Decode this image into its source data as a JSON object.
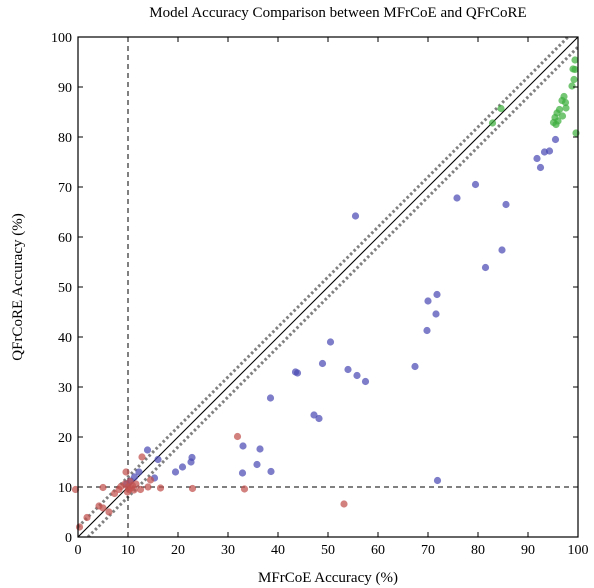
{
  "chart_data": {
    "type": "scatter",
    "title": "Model Accuracy Comparison between MFrCoE and QFrCoRE",
    "xlabel": "MFrCoE Accuracy (%)",
    "ylabel": "QFrCoRE Accuracy (%)",
    "xlim": [
      0,
      100
    ],
    "ylim": [
      0,
      100
    ],
    "x_ticks": [
      "0",
      "10",
      "20",
      "30",
      "40",
      "50",
      "60",
      "70",
      "80",
      "90",
      "100"
    ],
    "y_ticks": [
      "0",
      "10",
      "20",
      "30",
      "40",
      "50",
      "60",
      "70",
      "80",
      "90",
      "100"
    ],
    "grid": false,
    "reference_lines": {
      "diagonal": {
        "from": [
          0,
          0
        ],
        "to": [
          100,
          100
        ],
        "style": "solid"
      },
      "upper_band": {
        "from": [
          0,
          2
        ],
        "to": [
          98,
          100
        ],
        "style": "dotted"
      },
      "lower_band": {
        "from": [
          2,
          0
        ],
        "to": [
          100,
          98
        ],
        "style": "dotted"
      },
      "vertical": {
        "x": 10,
        "style": "dashed"
      },
      "horizontal": {
        "y": 10,
        "style": "dashed"
      }
    },
    "series": [
      {
        "color": "#4b4bb4",
        "points": [
          [
            55.5,
            64.2
          ],
          [
            75.8,
            67.8
          ],
          [
            79.5,
            70.5
          ],
          [
            85.6,
            66.5
          ],
          [
            91.8,
            75.7
          ],
          [
            92.5,
            73.9
          ],
          [
            93.3,
            77.0
          ],
          [
            94.3,
            77.2
          ],
          [
            95.5,
            79.5
          ],
          [
            81.5,
            53.9
          ],
          [
            84.8,
            57.4
          ],
          [
            71.8,
            48.5
          ],
          [
            70.0,
            47.2
          ],
          [
            71.6,
            44.6
          ],
          [
            69.8,
            41.3
          ],
          [
            67.4,
            34.1
          ],
          [
            50.5,
            39.0
          ],
          [
            54.0,
            33.5
          ],
          [
            55.8,
            32.3
          ],
          [
            57.5,
            31.1
          ],
          [
            48.9,
            34.7
          ],
          [
            43.5,
            33.0
          ],
          [
            43.9,
            32.8
          ],
          [
            38.5,
            27.8
          ],
          [
            47.2,
            24.4
          ],
          [
            48.2,
            23.7
          ],
          [
            33.0,
            18.2
          ],
          [
            36.4,
            17.6
          ],
          [
            35.8,
            14.5
          ],
          [
            32.9,
            12.8
          ],
          [
            38.6,
            13.1
          ],
          [
            71.9,
            11.3
          ],
          [
            22.8,
            15.9
          ],
          [
            22.6,
            15.0
          ],
          [
            20.9,
            14.0
          ],
          [
            19.5,
            13.0
          ],
          [
            16.0,
            15.5
          ],
          [
            13.9,
            17.4
          ],
          [
            12.2,
            13.0
          ],
          [
            11.3,
            12.0
          ],
          [
            15.3,
            11.8
          ],
          [
            10.5,
            11.2
          ],
          [
            9.7,
            10.6
          ]
        ]
      },
      {
        "color": "#c0504d",
        "points": [
          [
            -0.5,
            9.5
          ],
          [
            0.3,
            2.0
          ],
          [
            1.8,
            3.9
          ],
          [
            4.2,
            6.2
          ],
          [
            5.0,
            5.8
          ],
          [
            6.2,
            5.0
          ],
          [
            5.0,
            9.9
          ],
          [
            7.3,
            8.7
          ],
          [
            8.2,
            9.5
          ],
          [
            9.4,
            10.6
          ],
          [
            9.6,
            13.0
          ],
          [
            10.0,
            10.0
          ],
          [
            10.2,
            9.5
          ],
          [
            10.6,
            9.8
          ],
          [
            10.9,
            10.3
          ],
          [
            11.2,
            9.4
          ],
          [
            11.6,
            10.6
          ],
          [
            12.5,
            9.5
          ],
          [
            12.8,
            16.0
          ],
          [
            14.0,
            10.0
          ],
          [
            14.5,
            11.4
          ],
          [
            16.5,
            9.8
          ],
          [
            22.9,
            9.7
          ],
          [
            31.9,
            20.1
          ],
          [
            33.3,
            9.6
          ],
          [
            53.2,
            6.6
          ],
          [
            9.9,
            9.0
          ],
          [
            10.4,
            11.1
          ],
          [
            8.6,
            10.1
          ]
        ]
      },
      {
        "color": "#3fae3f",
        "points": [
          [
            82.9,
            82.8
          ],
          [
            84.6,
            85.7
          ],
          [
            99.4,
            95.4
          ],
          [
            99.4,
            93.5
          ],
          [
            99.0,
            93.6
          ],
          [
            99.2,
            91.5
          ],
          [
            98.8,
            90.2
          ],
          [
            99.6,
            80.8
          ],
          [
            97.2,
            88.1
          ],
          [
            96.8,
            87.3
          ],
          [
            97.5,
            86.9
          ],
          [
            97.6,
            85.8
          ],
          [
            96.3,
            85.5
          ],
          [
            95.8,
            84.8
          ],
          [
            96.9,
            84.2
          ],
          [
            95.4,
            83.9
          ],
          [
            95.1,
            82.9
          ],
          [
            95.6,
            82.5
          ],
          [
            96.0,
            83.2
          ]
        ]
      }
    ]
  }
}
